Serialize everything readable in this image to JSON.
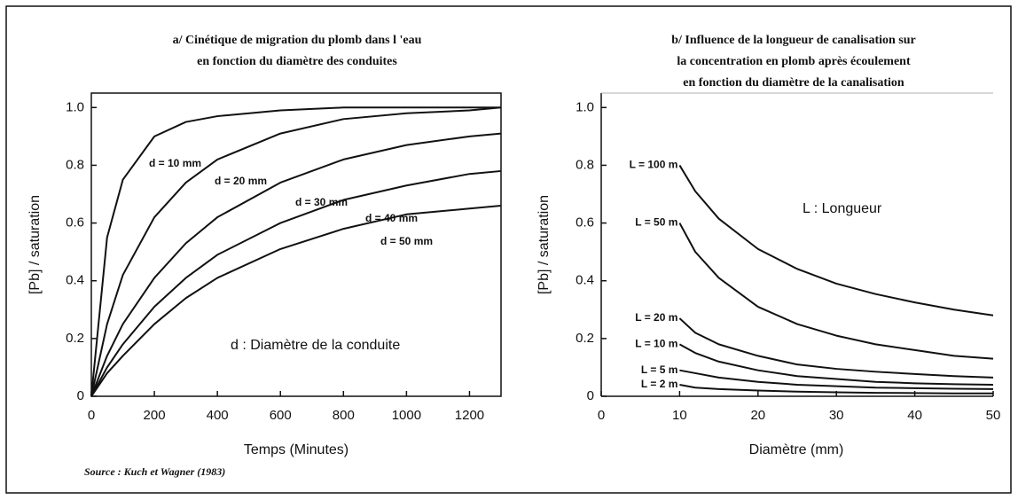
{
  "chart_data": [
    {
      "type": "line",
      "title": [
        "a/ Cinétique de migration du plomb dans l 'eau",
        "en fonction du diamètre des conduites"
      ],
      "xlabel": "Temps (Minutes)",
      "ylabel": "[Pb] / saturation",
      "x": [
        0,
        50,
        100,
        200,
        300,
        400,
        600,
        800,
        1000,
        1200,
        1300
      ],
      "series": [
        {
          "name": "d = 10 mm",
          "color": "#111111",
          "values": [
            0,
            0.55,
            0.75,
            0.9,
            0.95,
            0.97,
            0.99,
            1,
            1,
            1,
            1
          ]
        },
        {
          "name": "d = 20 mm",
          "color": "#111111",
          "values": [
            0,
            0.25,
            0.42,
            0.62,
            0.74,
            0.82,
            0.91,
            0.96,
            0.98,
            0.99,
            1
          ]
        },
        {
          "name": "d = 30 mm",
          "color": "#111111",
          "values": [
            0,
            0.14,
            0.25,
            0.41,
            0.53,
            0.62,
            0.74,
            0.82,
            0.87,
            0.9,
            0.91
          ]
        },
        {
          "name": "d = 40 mm",
          "color": "#111111",
          "values": [
            0,
            0.1,
            0.18,
            0.31,
            0.41,
            0.49,
            0.6,
            0.68,
            0.73,
            0.77,
            0.78
          ]
        },
        {
          "name": "d = 50 mm",
          "color": "#111111",
          "values": [
            0,
            0.08,
            0.14,
            0.25,
            0.34,
            0.41,
            0.51,
            0.58,
            0.63,
            0.65,
            0.66
          ]
        }
      ],
      "annotations": [
        "d : Diamètre de la conduite"
      ],
      "xlim": [
        0,
        1300
      ],
      "xticks": [
        0,
        200,
        400,
        600,
        800,
        1000,
        1200
      ],
      "ylim": [
        0,
        1.05
      ],
      "yticks": [
        0,
        0.2,
        0.4,
        0.6,
        0.8,
        {
          "value": 1,
          "label": "1.0"
        }
      ],
      "grid": false
    },
    {
      "type": "line",
      "title": [
        "b/ Influence de la longueur de canalisation sur",
        "la concentration en plomb après écoulement",
        "en fonction du diamètre de la canalisation"
      ],
      "xlabel": "Diamètre (mm)",
      "ylabel": "[Pb] / saturation",
      "x": [
        10,
        12,
        15,
        20,
        25,
        30,
        35,
        40,
        45,
        50
      ],
      "series": [
        {
          "name": "L = 100 m",
          "color": "#111111",
          "values": [
            0.8,
            0.71,
            0.615,
            0.51,
            0.441,
            0.39,
            0.354,
            0.325,
            0.3,
            0.28
          ]
        },
        {
          "name": "L = 50 m",
          "color": "#111111",
          "values": [
            0.6,
            0.5,
            0.41,
            0.31,
            0.25,
            0.21,
            0.18,
            0.16,
            0.14,
            0.13
          ]
        },
        {
          "name": "L = 20 m",
          "color": "#111111",
          "values": [
            0.27,
            0.22,
            0.18,
            0.14,
            0.11,
            0.095,
            0.085,
            0.077,
            0.07,
            0.065
          ]
        },
        {
          "name": "L = 10 m",
          "color": "#111111",
          "values": [
            0.18,
            0.15,
            0.12,
            0.09,
            0.07,
            0.06,
            0.05,
            0.045,
            0.042,
            0.04
          ]
        },
        {
          "name": "L = 5 m",
          "color": "#111111",
          "values": [
            0.09,
            0.08,
            0.065,
            0.05,
            0.04,
            0.035,
            0.03,
            0.028,
            0.026,
            0.025
          ]
        },
        {
          "name": "L = 2 m",
          "color": "#111111",
          "values": [
            0.04,
            0.03,
            0.025,
            0.02,
            0.016,
            0.014,
            0.012,
            0.011,
            0.01,
            0.01
          ]
        }
      ],
      "annotations": [
        "L : Longueur"
      ],
      "xlim": [
        0,
        50
      ],
      "xticks": [
        0,
        10,
        20,
        30,
        40,
        50
      ],
      "ylim": [
        0,
        1.05
      ],
      "yticks": [
        0,
        0.2,
        0.4,
        0.6,
        0.8,
        {
          "value": 1,
          "label": "1.0"
        }
      ],
      "grid": false
    }
  ],
  "source": "Source : Kuch et Wagner (1983)"
}
